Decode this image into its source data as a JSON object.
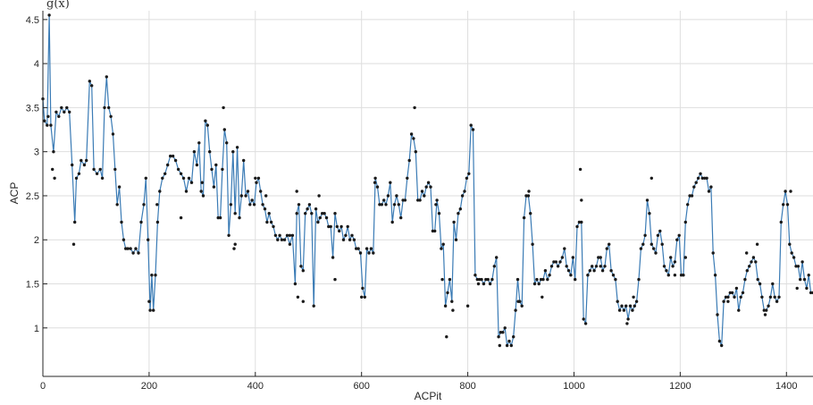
{
  "chart_data": {
    "type": "line",
    "title": "",
    "top_text": "g(x)",
    "xlabel": "ACPit",
    "ylabel": "ACP",
    "xlim": [
      0,
      1450
    ],
    "ylim": [
      0.45,
      4.6
    ],
    "xticks": [
      0,
      200,
      400,
      600,
      800,
      1000,
      1200,
      1400
    ],
    "yticks": [
      1,
      1.5,
      2,
      2.5,
      3,
      3.5,
      4,
      4.5
    ],
    "xtick_labels": [
      "0",
      "200",
      "400",
      "600",
      "800",
      "1000",
      "1200",
      "1400"
    ],
    "ytick_labels": [
      "1",
      "1.5",
      "2",
      "2.5",
      "3",
      "3.5",
      "4",
      "4.5"
    ],
    "grid": true,
    "line_color": "#3a7bb5",
    "point_color": "#1a1a1a",
    "line_keyframes": [
      [
        0,
        3.6
      ],
      [
        3,
        3.35
      ],
      [
        8,
        3.3
      ],
      [
        12,
        4.55
      ],
      [
        15,
        3.3
      ],
      [
        20,
        3.0
      ],
      [
        25,
        3.45
      ],
      [
        30,
        3.4
      ],
      [
        35,
        3.5
      ],
      [
        40,
        3.45
      ],
      [
        45,
        3.5
      ],
      [
        50,
        3.45
      ],
      [
        55,
        2.85
      ],
      [
        60,
        2.2
      ],
      [
        63,
        2.7
      ],
      [
        68,
        2.75
      ],
      [
        72,
        2.9
      ],
      [
        78,
        2.85
      ],
      [
        82,
        2.9
      ],
      [
        88,
        3.8
      ],
      [
        92,
        3.75
      ],
      [
        96,
        2.8
      ],
      [
        102,
        2.75
      ],
      [
        108,
        2.8
      ],
      [
        112,
        2.7
      ],
      [
        116,
        3.5
      ],
      [
        120,
        3.85
      ],
      [
        124,
        3.5
      ],
      [
        128,
        3.4
      ],
      [
        132,
        3.2
      ],
      [
        136,
        2.8
      ],
      [
        140,
        2.4
      ],
      [
        144,
        2.6
      ],
      [
        148,
        2.2
      ],
      [
        152,
        2.0
      ],
      [
        156,
        1.9
      ],
      [
        160,
        1.9
      ],
      [
        165,
        1.9
      ],
      [
        170,
        1.85
      ],
      [
        175,
        1.9
      ],
      [
        180,
        1.85
      ],
      [
        185,
        2.2
      ],
      [
        190,
        2.4
      ],
      [
        194,
        2.7
      ],
      [
        198,
        2.0
      ],
      [
        202,
        1.2
      ],
      [
        205,
        1.6
      ],
      [
        208,
        1.2
      ],
      [
        212,
        1.6
      ],
      [
        216,
        2.2
      ],
      [
        220,
        2.55
      ],
      [
        225,
        2.7
      ],
      [
        230,
        2.75
      ],
      [
        235,
        2.85
      ],
      [
        240,
        2.95
      ],
      [
        245,
        2.95
      ],
      [
        250,
        2.9
      ],
      [
        255,
        2.8
      ],
      [
        260,
        2.75
      ],
      [
        265,
        2.7
      ],
      [
        270,
        2.55
      ],
      [
        275,
        2.7
      ],
      [
        280,
        2.65
      ],
      [
        285,
        3.0
      ],
      [
        290,
        2.85
      ],
      [
        294,
        3.1
      ],
      [
        298,
        2.55
      ],
      [
        302,
        2.5
      ],
      [
        306,
        3.35
      ],
      [
        310,
        3.3
      ],
      [
        314,
        3.0
      ],
      [
        318,
        2.8
      ],
      [
        322,
        2.6
      ],
      [
        326,
        2.85
      ],
      [
        330,
        2.25
      ],
      [
        334,
        2.25
      ],
      [
        338,
        2.8
      ],
      [
        342,
        3.25
      ],
      [
        346,
        3.1
      ],
      [
        350,
        2.05
      ],
      [
        354,
        2.4
      ],
      [
        358,
        3.0
      ],
      [
        362,
        2.3
      ],
      [
        366,
        3.05
      ],
      [
        370,
        2.25
      ],
      [
        374,
        2.5
      ],
      [
        378,
        2.9
      ],
      [
        382,
        2.5
      ],
      [
        386,
        2.55
      ],
      [
        390,
        2.4
      ],
      [
        394,
        2.45
      ],
      [
        398,
        2.4
      ],
      [
        402,
        2.65
      ],
      [
        406,
        2.7
      ],
      [
        410,
        2.55
      ],
      [
        414,
        2.4
      ],
      [
        418,
        2.35
      ],
      [
        422,
        2.2
      ],
      [
        426,
        2.3
      ],
      [
        430,
        2.2
      ],
      [
        434,
        2.15
      ],
      [
        438,
        2.05
      ],
      [
        442,
        2.0
      ],
      [
        446,
        2.05
      ],
      [
        450,
        2.0
      ],
      [
        455,
        2.0
      ],
      [
        460,
        2.05
      ],
      [
        465,
        1.95
      ],
      [
        470,
        2.05
      ],
      [
        475,
        1.5
      ],
      [
        478,
        2.3
      ],
      [
        482,
        2.4
      ],
      [
        486,
        1.7
      ],
      [
        490,
        1.65
      ],
      [
        494,
        2.3
      ],
      [
        498,
        2.35
      ],
      [
        502,
        2.4
      ],
      [
        506,
        2.3
      ],
      [
        510,
        1.25
      ],
      [
        514,
        2.35
      ],
      [
        518,
        2.2
      ],
      [
        522,
        2.25
      ],
      [
        526,
        2.3
      ],
      [
        530,
        2.3
      ],
      [
        534,
        2.25
      ],
      [
        538,
        2.15
      ],
      [
        542,
        2.15
      ],
      [
        546,
        1.8
      ],
      [
        550,
        2.3
      ],
      [
        554,
        2.15
      ],
      [
        558,
        2.1
      ],
      [
        562,
        2.15
      ],
      [
        566,
        2.0
      ],
      [
        570,
        2.05
      ],
      [
        574,
        2.15
      ],
      [
        578,
        2.0
      ],
      [
        582,
        2.05
      ],
      [
        586,
        2.0
      ],
      [
        590,
        1.9
      ],
      [
        594,
        1.9
      ],
      [
        598,
        1.85
      ],
      [
        602,
        1.45
      ],
      [
        606,
        1.35
      ],
      [
        610,
        1.9
      ],
      [
        614,
        1.85
      ],
      [
        618,
        1.9
      ],
      [
        622,
        1.85
      ],
      [
        626,
        2.7
      ],
      [
        630,
        2.6
      ],
      [
        634,
        2.4
      ],
      [
        638,
        2.4
      ],
      [
        642,
        2.45
      ],
      [
        646,
        2.4
      ],
      [
        650,
        2.5
      ],
      [
        654,
        2.65
      ],
      [
        658,
        2.2
      ],
      [
        662,
        2.4
      ],
      [
        666,
        2.5
      ],
      [
        670,
        2.4
      ],
      [
        674,
        2.25
      ],
      [
        678,
        2.45
      ],
      [
        682,
        2.45
      ],
      [
        686,
        2.7
      ],
      [
        690,
        2.9
      ],
      [
        694,
        3.2
      ],
      [
        698,
        3.15
      ],
      [
        702,
        3.0
      ],
      [
        706,
        2.45
      ],
      [
        710,
        2.45
      ],
      [
        714,
        2.55
      ],
      [
        718,
        2.5
      ],
      [
        722,
        2.6
      ],
      [
        726,
        2.65
      ],
      [
        730,
        2.6
      ],
      [
        734,
        2.1
      ],
      [
        738,
        2.1
      ],
      [
        742,
        2.45
      ],
      [
        746,
        2.3
      ],
      [
        750,
        1.9
      ],
      [
        754,
        1.95
      ],
      [
        758,
        1.25
      ],
      [
        762,
        1.4
      ],
      [
        766,
        1.55
      ],
      [
        770,
        1.3
      ],
      [
        774,
        2.2
      ],
      [
        778,
        2.0
      ],
      [
        782,
        2.3
      ],
      [
        786,
        2.35
      ],
      [
        790,
        2.5
      ],
      [
        794,
        2.55
      ],
      [
        798,
        2.7
      ],
      [
        802,
        2.75
      ],
      [
        806,
        3.3
      ],
      [
        810,
        3.25
      ],
      [
        814,
        1.6
      ],
      [
        818,
        1.55
      ],
      [
        822,
        1.55
      ],
      [
        826,
        1.55
      ],
      [
        830,
        1.5
      ],
      [
        834,
        1.55
      ],
      [
        838,
        1.55
      ],
      [
        842,
        1.5
      ],
      [
        846,
        1.55
      ],
      [
        850,
        1.7
      ],
      [
        854,
        1.8
      ],
      [
        858,
        0.9
      ],
      [
        862,
        0.95
      ],
      [
        866,
        0.95
      ],
      [
        870,
        1.0
      ],
      [
        874,
        0.8
      ],
      [
        878,
        0.85
      ],
      [
        882,
        0.8
      ],
      [
        886,
        0.9
      ],
      [
        890,
        1.2
      ],
      [
        894,
        1.55
      ],
      [
        898,
        1.3
      ],
      [
        902,
        1.25
      ],
      [
        906,
        2.25
      ],
      [
        910,
        2.5
      ],
      [
        914,
        2.5
      ],
      [
        918,
        2.3
      ],
      [
        922,
        1.95
      ],
      [
        926,
        1.5
      ],
      [
        930,
        1.55
      ],
      [
        934,
        1.5
      ],
      [
        938,
        1.55
      ],
      [
        942,
        1.55
      ],
      [
        946,
        1.65
      ],
      [
        950,
        1.55
      ],
      [
        954,
        1.6
      ],
      [
        958,
        1.7
      ],
      [
        962,
        1.75
      ],
      [
        966,
        1.75
      ],
      [
        970,
        1.7
      ],
      [
        974,
        1.75
      ],
      [
        978,
        1.8
      ],
      [
        982,
        1.9
      ],
      [
        986,
        1.7
      ],
      [
        990,
        1.65
      ],
      [
        994,
        1.6
      ],
      [
        998,
        1.8
      ],
      [
        1002,
        1.55
      ],
      [
        1006,
        2.15
      ],
      [
        1010,
        2.2
      ],
      [
        1014,
        2.2
      ],
      [
        1018,
        1.1
      ],
      [
        1022,
        1.05
      ],
      [
        1026,
        1.6
      ],
      [
        1030,
        1.65
      ],
      [
        1034,
        1.7
      ],
      [
        1038,
        1.65
      ],
      [
        1042,
        1.7
      ],
      [
        1046,
        1.8
      ],
      [
        1050,
        1.8
      ],
      [
        1054,
        1.65
      ],
      [
        1058,
        1.7
      ],
      [
        1062,
        1.9
      ],
      [
        1066,
        1.95
      ],
      [
        1070,
        1.65
      ],
      [
        1074,
        1.6
      ],
      [
        1078,
        1.55
      ],
      [
        1082,
        1.3
      ],
      [
        1086,
        1.2
      ],
      [
        1090,
        1.25
      ],
      [
        1094,
        1.2
      ],
      [
        1098,
        1.25
      ],
      [
        1102,
        1.1
      ],
      [
        1106,
        1.25
      ],
      [
        1110,
        1.2
      ],
      [
        1114,
        1.25
      ],
      [
        1118,
        1.3
      ],
      [
        1122,
        1.55
      ],
      [
        1126,
        1.9
      ],
      [
        1130,
        1.95
      ],
      [
        1134,
        2.05
      ],
      [
        1138,
        2.45
      ],
      [
        1142,
        2.3
      ],
      [
        1146,
        1.95
      ],
      [
        1150,
        1.9
      ],
      [
        1154,
        1.85
      ],
      [
        1158,
        2.05
      ],
      [
        1162,
        2.1
      ],
      [
        1166,
        1.95
      ],
      [
        1170,
        1.7
      ],
      [
        1174,
        1.65
      ],
      [
        1178,
        1.6
      ],
      [
        1182,
        1.8
      ],
      [
        1186,
        1.7
      ],
      [
        1190,
        1.75
      ],
      [
        1194,
        2.0
      ],
      [
        1198,
        2.05
      ],
      [
        1202,
        1.6
      ],
      [
        1206,
        1.6
      ],
      [
        1210,
        2.2
      ],
      [
        1214,
        2.4
      ],
      [
        1218,
        2.5
      ],
      [
        1222,
        2.5
      ],
      [
        1226,
        2.6
      ],
      [
        1230,
        2.65
      ],
      [
        1234,
        2.7
      ],
      [
        1238,
        2.75
      ],
      [
        1242,
        2.7
      ],
      [
        1246,
        2.7
      ],
      [
        1250,
        2.7
      ],
      [
        1254,
        2.55
      ],
      [
        1258,
        2.6
      ],
      [
        1262,
        1.85
      ],
      [
        1266,
        1.6
      ],
      [
        1270,
        1.15
      ],
      [
        1274,
        0.85
      ],
      [
        1278,
        0.8
      ],
      [
        1282,
        1.3
      ],
      [
        1286,
        1.35
      ],
      [
        1290,
        1.35
      ],
      [
        1294,
        1.4
      ],
      [
        1298,
        1.4
      ],
      [
        1302,
        1.35
      ],
      [
        1306,
        1.45
      ],
      [
        1310,
        1.2
      ],
      [
        1314,
        1.35
      ],
      [
        1318,
        1.4
      ],
      [
        1322,
        1.55
      ],
      [
        1326,
        1.65
      ],
      [
        1330,
        1.7
      ],
      [
        1334,
        1.75
      ],
      [
        1338,
        1.8
      ],
      [
        1342,
        1.75
      ],
      [
        1346,
        1.55
      ],
      [
        1350,
        1.5
      ],
      [
        1354,
        1.35
      ],
      [
        1358,
        1.2
      ],
      [
        1362,
        1.2
      ],
      [
        1366,
        1.25
      ],
      [
        1370,
        1.35
      ],
      [
        1374,
        1.5
      ],
      [
        1378,
        1.35
      ],
      [
        1382,
        1.3
      ],
      [
        1386,
        1.35
      ],
      [
        1390,
        2.2
      ],
      [
        1394,
        2.4
      ],
      [
        1398,
        2.55
      ],
      [
        1402,
        2.4
      ],
      [
        1406,
        1.95
      ],
      [
        1410,
        1.85
      ],
      [
        1414,
        1.8
      ],
      [
        1418,
        1.7
      ],
      [
        1422,
        1.7
      ],
      [
        1426,
        1.55
      ],
      [
        1430,
        1.75
      ],
      [
        1434,
        1.55
      ],
      [
        1438,
        1.45
      ],
      [
        1442,
        1.6
      ],
      [
        1446,
        1.4
      ],
      [
        1450,
        1.4
      ]
    ],
    "outlier_points": [
      [
        10,
        3.4
      ],
      [
        18,
        2.8
      ],
      [
        22,
        2.7
      ],
      [
        58,
        1.95
      ],
      [
        200,
        1.3
      ],
      [
        215,
        2.4
      ],
      [
        260,
        2.25
      ],
      [
        300,
        2.65
      ],
      [
        340,
        3.5
      ],
      [
        360,
        1.9
      ],
      [
        362,
        1.95
      ],
      [
        400,
        2.7
      ],
      [
        420,
        2.5
      ],
      [
        465,
        2.05
      ],
      [
        478,
        2.55
      ],
      [
        480,
        1.35
      ],
      [
        490,
        1.3
      ],
      [
        520,
        2.5
      ],
      [
        550,
        1.55
      ],
      [
        600,
        1.35
      ],
      [
        625,
        2.65
      ],
      [
        700,
        3.5
      ],
      [
        740,
        2.4
      ],
      [
        752,
        1.55
      ],
      [
        760,
        0.9
      ],
      [
        772,
        1.2
      ],
      [
        800,
        1.25
      ],
      [
        820,
        1.5
      ],
      [
        860,
        0.8
      ],
      [
        895,
        1.3
      ],
      [
        915,
        2.55
      ],
      [
        940,
        1.35
      ],
      [
        1012,
        2.8
      ],
      [
        1014,
        2.45
      ],
      [
        1050,
        1.7
      ],
      [
        1100,
        1.05
      ],
      [
        1112,
        1.35
      ],
      [
        1146,
        2.7
      ],
      [
        1190,
        1.6
      ],
      [
        1210,
        1.8
      ],
      [
        1290,
        1.3
      ],
      [
        1325,
        1.85
      ],
      [
        1345,
        1.95
      ],
      [
        1360,
        1.15
      ],
      [
        1408,
        2.55
      ],
      [
        1420,
        1.45
      ]
    ]
  }
}
